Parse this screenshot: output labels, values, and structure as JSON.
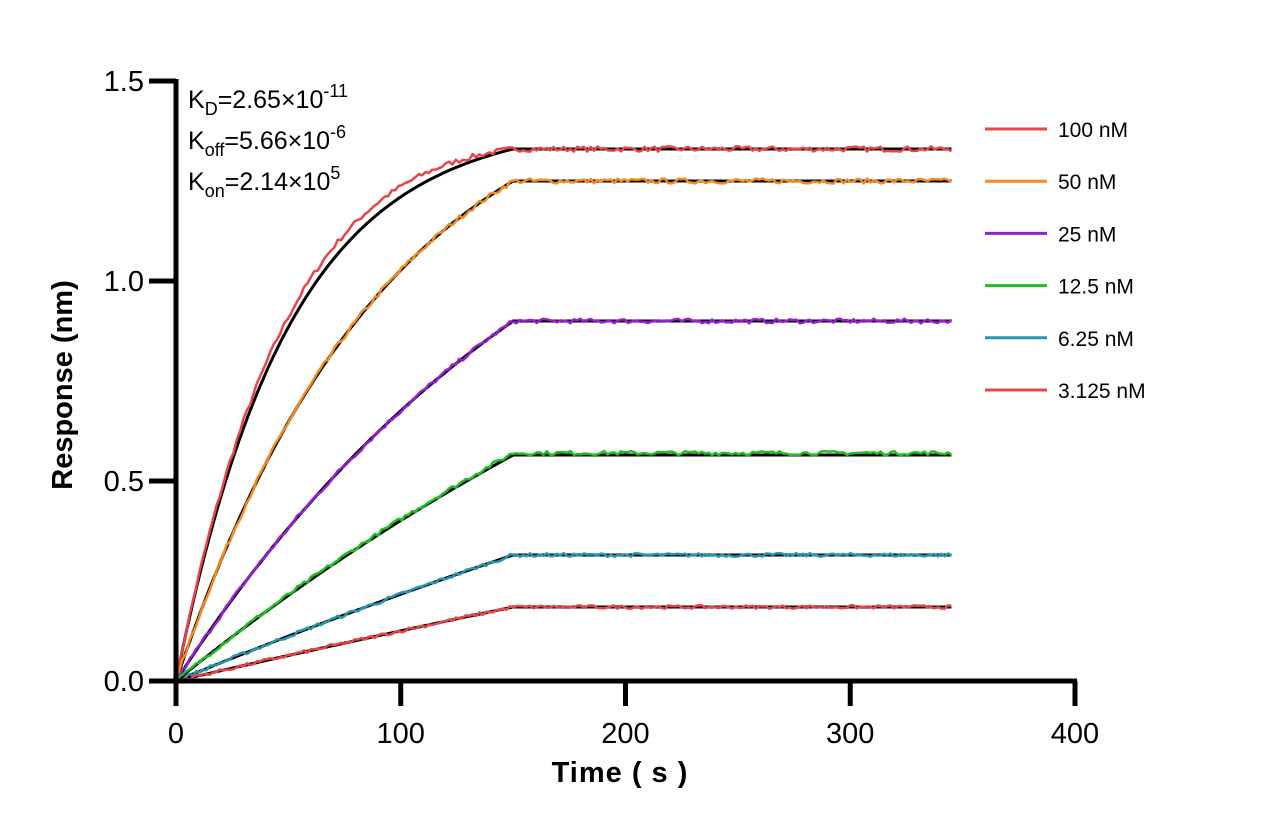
{
  "chart_data": {
    "type": "line",
    "title": "",
    "xlabel": "Time ( s )",
    "ylabel": "Response (nm)",
    "xlim": [
      0,
      400
    ],
    "ylim": [
      0,
      1.5
    ],
    "xticks": [
      0,
      100,
      200,
      300,
      400
    ],
    "xtick_labels": [
      "0",
      "100",
      "200",
      "300",
      "400"
    ],
    "yticks": [
      0,
      0.5,
      1.0,
      1.5
    ],
    "ytick_labels": [
      "0.0",
      "0.5",
      "1.0",
      "1.5"
    ],
    "grid": false,
    "legend_position": "right",
    "association_end": 150,
    "time_end": 345,
    "annotations": [
      {
        "main": "K",
        "sub": "D",
        "rest": "=2.65×10",
        "sup": "-11"
      },
      {
        "main": "K",
        "sub": "off",
        "rest": "=5.66×10",
        "sup": "-6"
      },
      {
        "main": "K",
        "sub": "on",
        "rest": "=2.14×10",
        "sup": "5"
      }
    ],
    "fit_color": "#000000",
    "series": [
      {
        "name": "100 nM",
        "color": "#e8454b",
        "plateau": 1.33,
        "curvature": 3.0,
        "fit_plateau": 1.33
      },
      {
        "name": "50 nM",
        "color": "#f58a1f",
        "plateau": 1.25,
        "curvature": 1.6,
        "fit_plateau": 1.25
      },
      {
        "name": "25 nM",
        "color": "#9a1ed6",
        "plateau": 0.9,
        "curvature": 0.8,
        "fit_plateau": 0.9
      },
      {
        "name": "12.5 nM",
        "color": "#1fbf1f",
        "plateau": 0.57,
        "curvature": 0.4,
        "fit_plateau": 0.565
      },
      {
        "name": "6.25 nM",
        "color": "#2596b0",
        "plateau": 0.315,
        "curvature": 0.2,
        "fit_plateau": 0.315
      },
      {
        "name": "3.125 nM",
        "color": "#e8454b",
        "plateau": 0.185,
        "curvature": 0.1,
        "fit_plateau": 0.185
      }
    ]
  }
}
